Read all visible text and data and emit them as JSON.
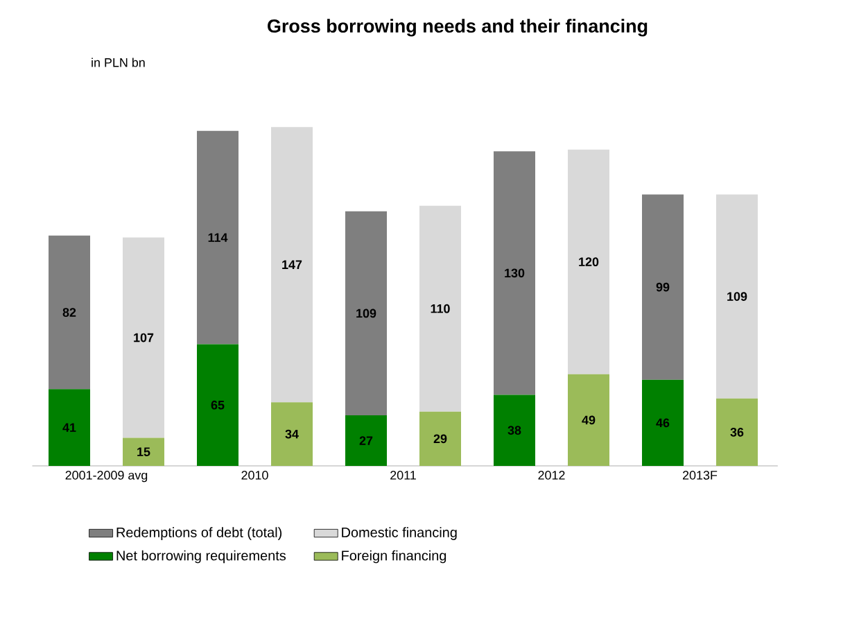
{
  "chart_data": {
    "type": "bar",
    "title": "Gross borrowing needs and their financing",
    "annotations": [
      "in PLN bn"
    ],
    "categories": [
      "2001-2009 avg",
      null,
      "2010",
      null,
      "2011",
      null,
      "2012",
      null,
      "2013F",
      null
    ],
    "stacked": true,
    "data_labels": true,
    "legend": "bottom",
    "series": [
      {
        "name": "Net borrowing requirements",
        "color": "#008000",
        "values": [
          41,
          null,
          65,
          null,
          27,
          null,
          38,
          null,
          46,
          null
        ]
      },
      {
        "name": "Redemptions of debt (total)",
        "color": "#7f7f7f",
        "values": [
          82,
          null,
          114,
          null,
          109,
          null,
          130,
          null,
          99,
          null
        ]
      },
      {
        "name": "Foreign financing",
        "color": "#9bbb59",
        "values": [
          null,
          15,
          null,
          34,
          null,
          29,
          null,
          49,
          null,
          36
        ]
      },
      {
        "name": "Domestic financing",
        "color": "#d9d9d9",
        "values": [
          null,
          107,
          null,
          147,
          null,
          110,
          null,
          120,
          null,
          109
        ]
      }
    ]
  }
}
